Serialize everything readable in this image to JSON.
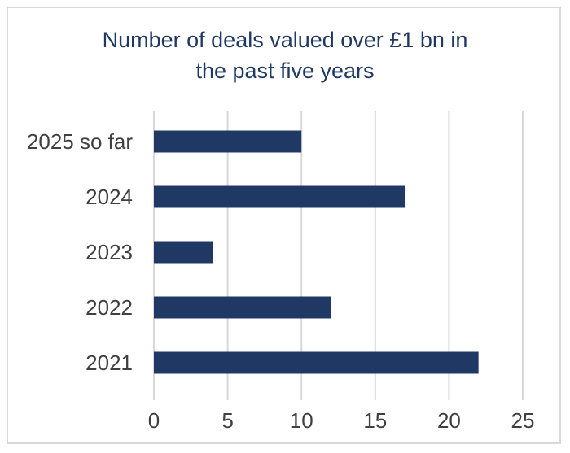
{
  "chart_data": {
    "type": "bar",
    "orientation": "horizontal",
    "title_lines": [
      "Number of deals valued over £1 bn in",
      "the past five years"
    ],
    "categories": [
      "2025 so far",
      "2024",
      "2023",
      "2022",
      "2021"
    ],
    "values": [
      10,
      17,
      4,
      12,
      22
    ],
    "xlim": [
      0,
      25
    ],
    "xticks": [
      "0",
      "5",
      "10",
      "15",
      "20",
      "25"
    ],
    "xlabel": "",
    "ylabel": "",
    "grid": true,
    "bar_color": "#1f3864",
    "grid_color": "#d9d9d9",
    "text_color": "#404040"
  }
}
